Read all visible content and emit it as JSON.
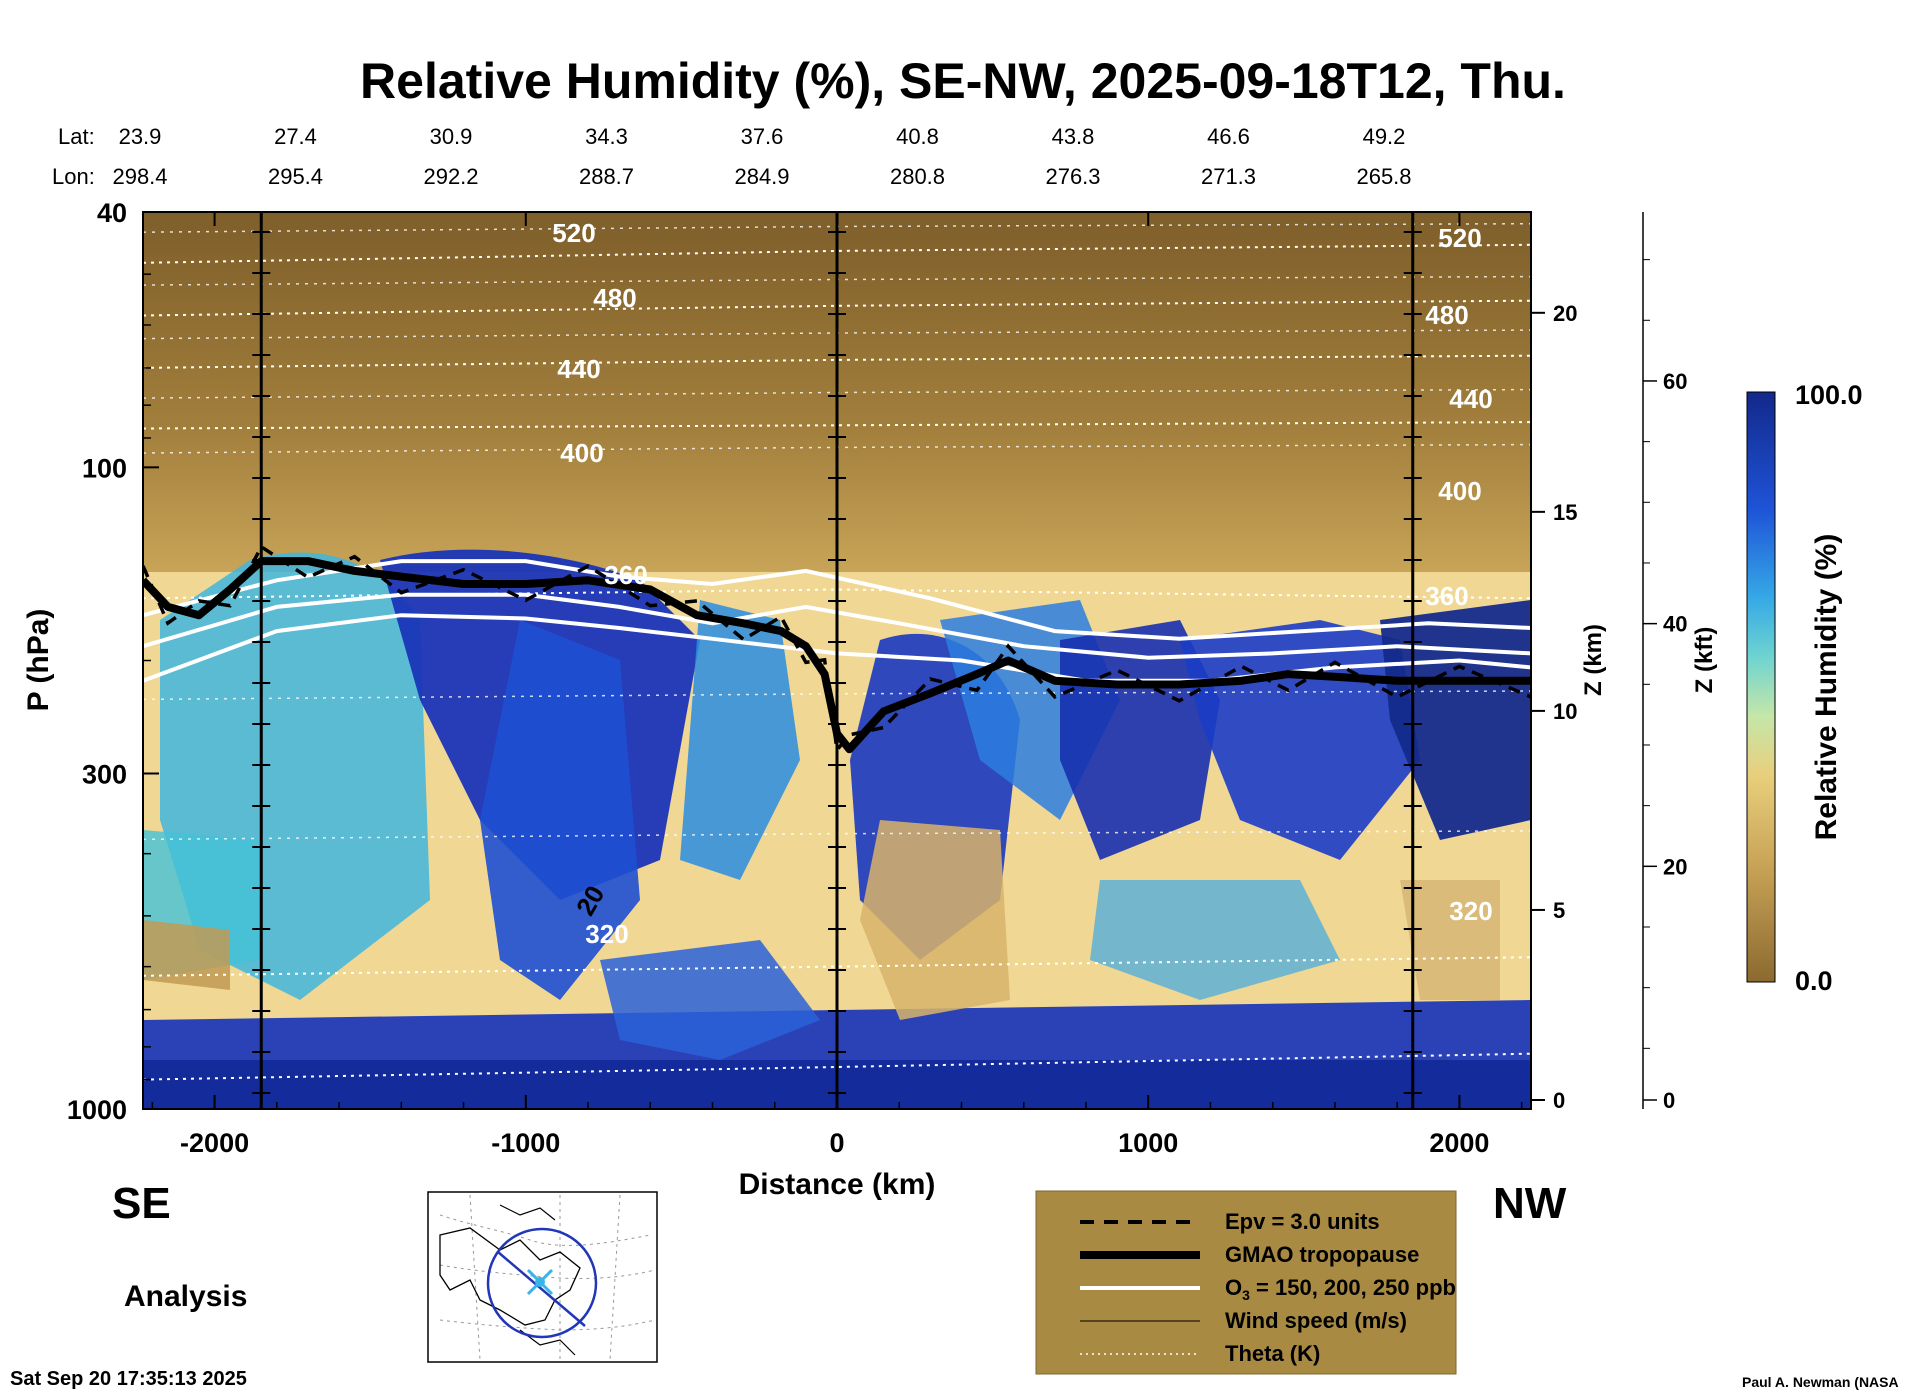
{
  "chart_data": {
    "type": "heatmap",
    "title": "Relative Humidity (%), SE-NW, 2025-09-18T12, Thu.",
    "xlabel": "Distance (km)",
    "ylabel": "P (hPa)",
    "y2label": "Z (km)",
    "y3label": "Z (kft)",
    "colorbar_label": "Relative Humidity (%)",
    "colorbar_range": [
      "0.0",
      "100.0"
    ],
    "x_range": [
      -2230,
      2230
    ],
    "x_ticks": [
      "-2000",
      "-1000",
      "0",
      "1000",
      "2000"
    ],
    "x_tick_values": [
      -2000,
      -1000,
      0,
      1000,
      2000
    ],
    "y_ticks": [
      "40",
      "100",
      "300",
      "1000"
    ],
    "y_tick_values": [
      40,
      100,
      300,
      1000
    ],
    "z_km_ticks": [
      "20",
      "15",
      "10",
      "5",
      "0"
    ],
    "z_kft_ticks": [
      "60",
      "40",
      "20",
      "0"
    ],
    "lat_label": "Lat:",
    "lon_label": "Lon:",
    "lat": [
      "23.9",
      "27.4",
      "30.9",
      "34.3",
      "37.6",
      "40.8",
      "43.8",
      "46.6",
      "49.2"
    ],
    "lon": [
      "298.4",
      "295.4",
      "292.2",
      "288.7",
      "284.9",
      "280.8",
      "276.3",
      "271.3",
      "265.8"
    ],
    "vertical_markers_km": [
      -1850,
      0,
      1850
    ],
    "theta_labels": [
      "520",
      "480",
      "440",
      "400",
      "360",
      "320",
      "520",
      "480",
      "440",
      "400",
      "360",
      "320"
    ],
    "wind_label": "20",
    "tropopause_hpa": [
      [
        -2230,
        150
      ],
      [
        -2150,
        165
      ],
      [
        -2050,
        170
      ],
      [
        -1950,
        155
      ],
      [
        -1850,
        140
      ],
      [
        -1700,
        140
      ],
      [
        -1550,
        145
      ],
      [
        -1400,
        148
      ],
      [
        -1200,
        152
      ],
      [
        -1000,
        152
      ],
      [
        -800,
        150
      ],
      [
        -600,
        155
      ],
      [
        -450,
        170
      ],
      [
        -300,
        175
      ],
      [
        -180,
        180
      ],
      [
        -100,
        190
      ],
      [
        -40,
        210
      ],
      [
        0,
        260
      ],
      [
        40,
        275
      ],
      [
        150,
        240
      ],
      [
        300,
        225
      ],
      [
        450,
        210
      ],
      [
        550,
        200
      ],
      [
        700,
        215
      ],
      [
        900,
        218
      ],
      [
        1100,
        218
      ],
      [
        1300,
        215
      ],
      [
        1450,
        210
      ],
      [
        1600,
        212
      ],
      [
        1800,
        215
      ],
      [
        2000,
        215
      ],
      [
        2230,
        215
      ]
    ],
    "o3_lines_hpa": [
      [
        [
          -2230,
          215
        ],
        [
          -1800,
          180
        ],
        [
          -1400,
          170
        ],
        [
          -1000,
          172
        ],
        [
          -700,
          178
        ],
        [
          -400,
          185
        ],
        [
          0,
          195
        ],
        [
          400,
          200
        ],
        [
          800,
          215
        ],
        [
          1200,
          215
        ],
        [
          1600,
          205
        ],
        [
          2000,
          200
        ],
        [
          2230,
          205
        ]
      ],
      [
        [
          -2230,
          190
        ],
        [
          -1800,
          165
        ],
        [
          -1400,
          158
        ],
        [
          -1000,
          158
        ],
        [
          -700,
          165
        ],
        [
          -400,
          175
        ],
        [
          -100,
          165
        ],
        [
          200,
          175
        ],
        [
          600,
          190
        ],
        [
          1000,
          198
        ],
        [
          1400,
          195
        ],
        [
          1800,
          190
        ],
        [
          2230,
          195
        ]
      ],
      [
        [
          -2230,
          170
        ],
        [
          -1800,
          150
        ],
        [
          -1400,
          140
        ],
        [
          -1000,
          140
        ],
        [
          -700,
          148
        ],
        [
          -400,
          152
        ],
        [
          -100,
          145
        ],
        [
          300,
          160
        ],
        [
          700,
          180
        ],
        [
          1100,
          185
        ],
        [
          1500,
          180
        ],
        [
          1900,
          175
        ],
        [
          2230,
          178
        ]
      ]
    ],
    "theta_levels_hpa": [
      [
        [
          -2230,
          48
        ],
        [
          0,
          46
        ],
        [
          2230,
          45
        ]
      ],
      [
        [
          -2230,
          58
        ],
        [
          0,
          56
        ],
        [
          2230,
          55
        ]
      ],
      [
        [
          -2230,
          70
        ],
        [
          0,
          68
        ],
        [
          2230,
          67
        ]
      ],
      [
        [
          -2230,
          87
        ],
        [
          0,
          86
        ],
        [
          2230,
          85
        ]
      ],
      [
        [
          -2230,
          160
        ],
        [
          0,
          155
        ],
        [
          2230,
          160
        ]
      ],
      [
        [
          -2230,
          620
        ],
        [
          0,
          600
        ],
        [
          2230,
          580
        ]
      ],
      [
        [
          -2230,
          900
        ],
        [
          0,
          860
        ],
        [
          2230,
          820
        ]
      ]
    ],
    "legend": [
      {
        "label": "Epv = 3.0 units",
        "style": "dashed"
      },
      {
        "label": "GMAO tropopause",
        "style": "thick"
      },
      {
        "label": "O",
        "sub": "3",
        "label_rest": " = 150, 200, 250 ppb",
        "style": "white"
      },
      {
        "label": "Wind speed (m/s)",
        "style": "thin"
      },
      {
        "label": "Theta (K)",
        "style": "dotted"
      }
    ]
  },
  "labels": {
    "se": "SE",
    "nw": "NW",
    "analysis": "Analysis",
    "timestamp": "Sat Sep 20 17:35:13 2025",
    "credit": "Paul A. Newman (NASA"
  },
  "colors": {
    "dry": "#8a6a2e",
    "moist": "#142a8c",
    "legend_bg": "#a98a42"
  }
}
